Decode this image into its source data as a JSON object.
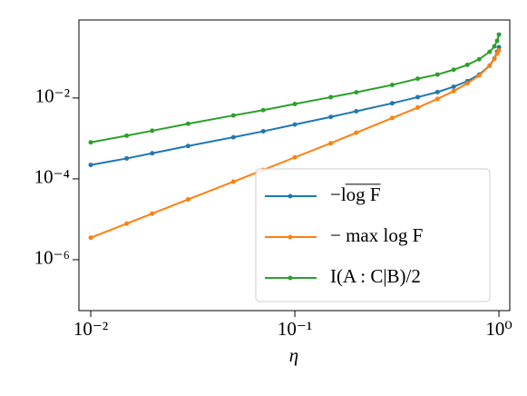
{
  "chart_data": {
    "type": "line",
    "x_label": "η",
    "x": [
      0.01,
      0.015,
      0.02,
      0.03,
      0.05,
      0.07,
      0.1,
      0.15,
      0.2,
      0.3,
      0.4,
      0.5,
      0.6,
      0.7,
      0.8,
      0.9,
      0.95,
      0.98,
      1.0
    ],
    "series": [
      {
        "name": "−log F",
        "color": "#1f77b4",
        "values": [
          0.00022,
          0.00032,
          0.00043,
          0.00065,
          0.00107,
          0.0015,
          0.0022,
          0.0034,
          0.0047,
          0.0074,
          0.0105,
          0.014,
          0.019,
          0.026,
          0.038,
          0.063,
          0.095,
          0.14,
          0.18
        ]
      },
      {
        "name": "− max log F",
        "color": "#ff7f0e",
        "values": [
          3.5e-06,
          7.8e-06,
          1.38e-05,
          3.1e-05,
          8.5e-05,
          0.000166,
          0.00034,
          0.00076,
          0.00138,
          0.0032,
          0.0058,
          0.0095,
          0.0148,
          0.023,
          0.036,
          0.063,
          0.093,
          0.126,
          0.15
        ]
      },
      {
        "name": "I(A : C|B)/2",
        "color": "#2ca02c",
        "values": [
          0.0008,
          0.00117,
          0.00155,
          0.0023,
          0.0037,
          0.005,
          0.0071,
          0.0105,
          0.0138,
          0.021,
          0.03,
          0.038,
          0.05,
          0.066,
          0.091,
          0.138,
          0.19,
          0.26,
          0.37
        ]
      }
    ],
    "xscale": "log",
    "yscale": "log",
    "xlim": [
      0.00875,
      1.13
    ],
    "ylim": [
      5.5e-08,
      0.85
    ],
    "xticks": [
      {
        "value": 0.01,
        "label": "10⁻²"
      },
      {
        "value": 0.1,
        "label": "10⁻¹"
      },
      {
        "value": 1,
        "label": "10⁰"
      }
    ],
    "yticks": [
      {
        "value": 1e-06,
        "label": "10⁻⁶"
      },
      {
        "value": 0.0001,
        "label": "10⁻⁴"
      },
      {
        "value": 0.01,
        "label": "10⁻²"
      }
    ],
    "legend": "lower right"
  }
}
